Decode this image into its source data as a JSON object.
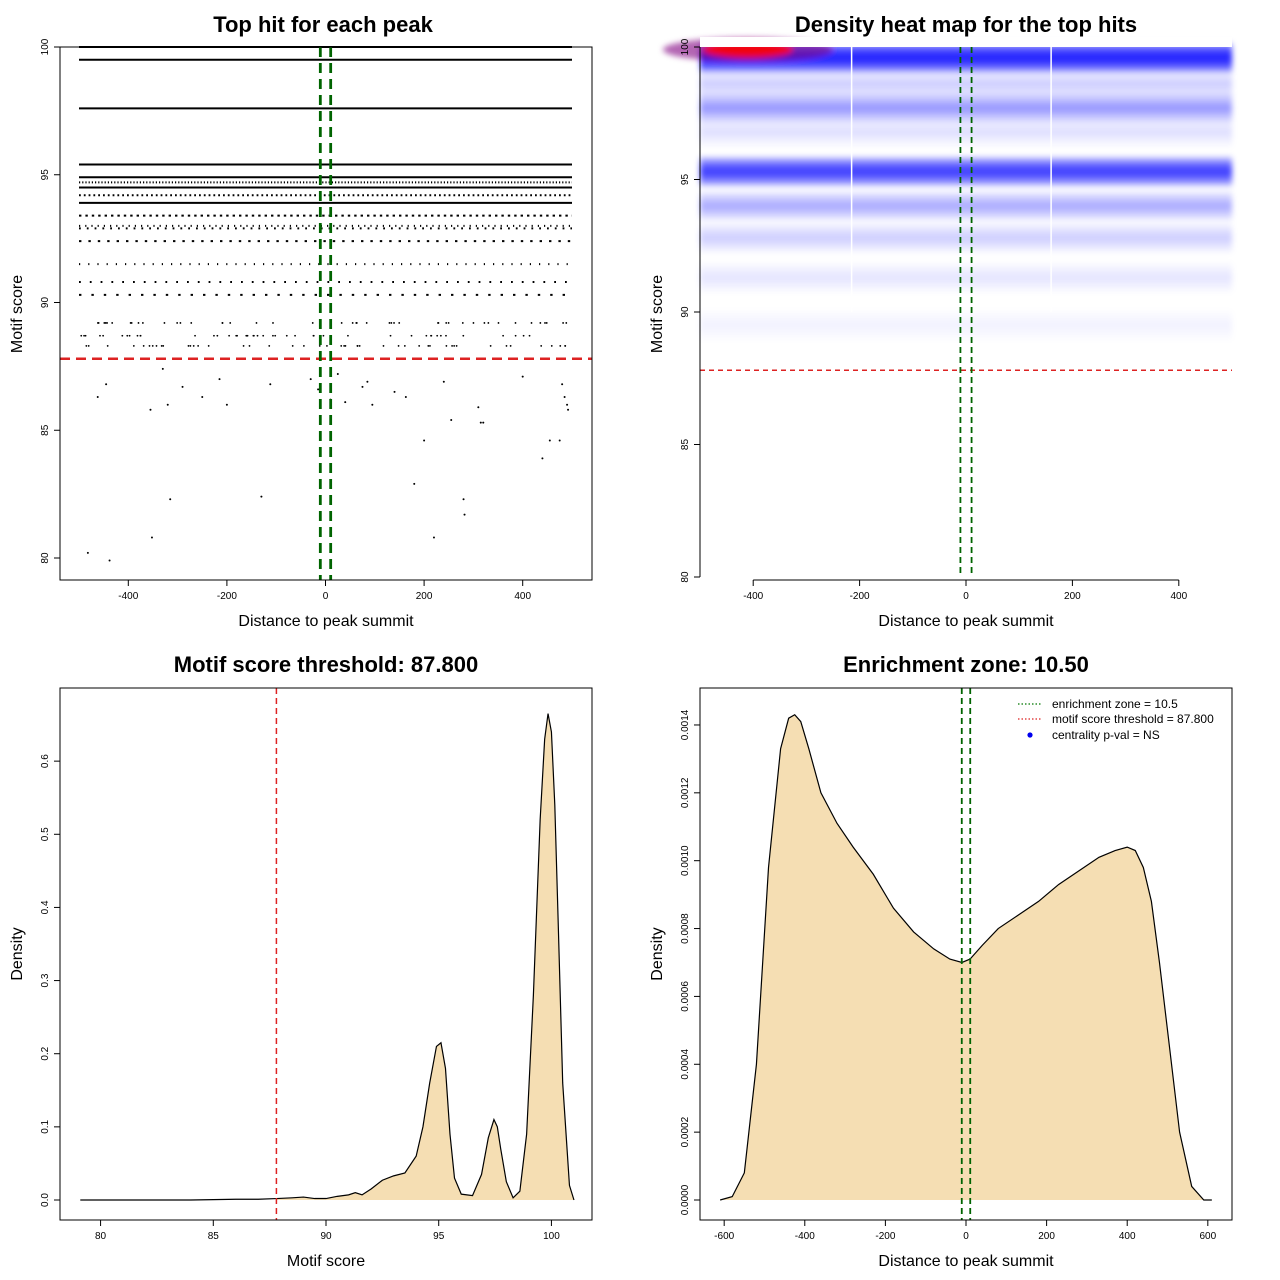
{
  "chart_data": [
    {
      "type": "scatter",
      "title": "Top hit for each peak",
      "xlabel": "Distance to peak summit",
      "ylabel": "Motif score",
      "xlim": [
        -500,
        500
      ],
      "ylim": [
        80,
        100
      ],
      "xticks": [
        -400,
        -200,
        0,
        200,
        400
      ],
      "yticks": [
        80,
        85,
        90,
        95,
        100
      ],
      "threshold": 87.8,
      "enrichment_zone": [
        -10.5,
        10.5
      ],
      "solid_rows": [
        100,
        99.5,
        97.6,
        95.4,
        94.9,
        94.5,
        93.9
      ],
      "dotted_rows": [
        94.7,
        94.2,
        93.4,
        93.0,
        92.9,
        92.4,
        91.5,
        90.8,
        90.3
      ],
      "sparse_rows": [
        89.2,
        88.7,
        88.3
      ],
      "points": [
        [
          -482,
          80.2
        ],
        [
          -438,
          79.9
        ],
        [
          -462,
          86.3
        ],
        [
          -445,
          86.8
        ],
        [
          -355,
          85.8
        ],
        [
          -352,
          80.8
        ],
        [
          -330,
          87.4
        ],
        [
          -320,
          86.0
        ],
        [
          -315,
          82.3
        ],
        [
          -290,
          86.7
        ],
        [
          -250,
          86.3
        ],
        [
          -215,
          87.0
        ],
        [
          -200,
          86.0
        ],
        [
          -130,
          82.4
        ],
        [
          -112,
          86.8
        ],
        [
          -30,
          87.0
        ],
        [
          -15,
          86.6
        ],
        [
          10,
          86.2
        ],
        [
          25,
          87.2
        ],
        [
          40,
          86.1
        ],
        [
          75,
          86.7
        ],
        [
          85,
          86.9
        ],
        [
          95,
          86.0
        ],
        [
          140,
          86.5
        ],
        [
          163,
          86.3
        ],
        [
          180,
          82.9
        ],
        [
          200,
          84.6
        ],
        [
          220,
          80.8
        ],
        [
          240,
          86.9
        ],
        [
          255,
          85.4
        ],
        [
          280,
          82.3
        ],
        [
          282,
          81.7
        ],
        [
          310,
          85.9
        ],
        [
          315,
          85.3
        ],
        [
          320,
          85.3
        ],
        [
          400,
          87.1
        ],
        [
          440,
          83.9
        ],
        [
          455,
          84.6
        ],
        [
          480,
          86.8
        ],
        [
          485,
          86.3
        ],
        [
          490,
          86.0
        ],
        [
          492,
          85.8
        ],
        [
          475,
          84.6
        ]
      ]
    },
    {
      "type": "heatmap",
      "title": "Density heat map for the top hits",
      "xlabel": "Distance to peak summit",
      "ylabel": "Motif score",
      "xlim": [
        -500,
        500
      ],
      "ylim": [
        80,
        100
      ],
      "xticks": [
        -400,
        -200,
        0,
        200,
        400
      ],
      "yticks": [
        80,
        85,
        90,
        95,
        100
      ],
      "threshold": 87.8,
      "enrichment_zone": [
        -10.5,
        10.5
      ],
      "bands": [
        {
          "score": 99.6,
          "intensity": 1.0
        },
        {
          "score": 98.6,
          "intensity": 0.12
        },
        {
          "score": 97.7,
          "intensity": 0.3
        },
        {
          "score": 96.8,
          "intensity": 0.08
        },
        {
          "score": 95.3,
          "intensity": 0.72
        },
        {
          "score": 94.0,
          "intensity": 0.22
        },
        {
          "score": 92.8,
          "intensity": 0.12
        },
        {
          "score": 91.3,
          "intensity": 0.07
        },
        {
          "score": 89.5,
          "intensity": 0.04
        }
      ],
      "hotspot": {
        "x": -410,
        "score": 99.9,
        "color": "#ff0000"
      }
    },
    {
      "type": "area",
      "title": "Motif score threshold: 87.800",
      "xlabel": "Motif score",
      "ylabel": "Density",
      "xlim": [
        79,
        101
      ],
      "ylim": [
        0,
        0.7
      ],
      "xticks": [
        80,
        85,
        90,
        95,
        100
      ],
      "yticks": [
        0.0,
        0.1,
        0.2,
        0.3,
        0.4,
        0.5,
        0.6
      ],
      "ytick_labels": [
        "0.0",
        "0.1",
        "0.2",
        "0.3",
        "0.4",
        "0.5",
        "0.6"
      ],
      "threshold": 87.8,
      "fill_from": 87.8,
      "x": [
        79.1,
        80,
        82,
        84,
        86,
        87,
        87.8,
        88.5,
        89,
        89.5,
        90,
        90.5,
        91,
        91.3,
        91.6,
        92,
        92.5,
        93,
        93.5,
        94,
        94.3,
        94.6,
        94.9,
        95.1,
        95.3,
        95.5,
        95.7,
        96,
        96.5,
        96.9,
        97.2,
        97.45,
        97.6,
        97.75,
        98,
        98.3,
        98.6,
        98.9,
        99.2,
        99.5,
        99.7,
        99.85,
        100,
        100.15,
        100.3,
        100.5,
        100.8,
        101
      ],
      "y": [
        0.0,
        0.0,
        0.0,
        0.0,
        0.001,
        0.001,
        0.002,
        0.003,
        0.004,
        0.002,
        0.002,
        0.005,
        0.007,
        0.01,
        0.007,
        0.015,
        0.027,
        0.033,
        0.037,
        0.06,
        0.1,
        0.16,
        0.21,
        0.215,
        0.18,
        0.09,
        0.03,
        0.008,
        0.006,
        0.035,
        0.085,
        0.11,
        0.1,
        0.07,
        0.025,
        0.003,
        0.012,
        0.09,
        0.28,
        0.52,
        0.63,
        0.665,
        0.64,
        0.54,
        0.38,
        0.16,
        0.02,
        0.0
      ]
    },
    {
      "type": "area",
      "title": "Enrichment zone: 10.50",
      "xlabel": "Distance to peak summit",
      "ylabel": "Density",
      "xlim": [
        -610,
        610
      ],
      "ylim": [
        0,
        0.00145
      ],
      "xticks": [
        -600,
        -400,
        -200,
        0,
        200,
        400,
        600
      ],
      "yticks": [
        0.0,
        0.0002,
        0.0004,
        0.0006,
        0.0008,
        0.001,
        0.0012,
        0.0014
      ],
      "ytick_labels": [
        "0.0000",
        "0.0002",
        "0.0004",
        "0.0006",
        "0.0008",
        "0.0010",
        "0.0012",
        "0.0014"
      ],
      "threshold": 87.8,
      "enrichment_zone": [
        -10.5,
        10.5
      ],
      "x": [
        -610,
        -580,
        -550,
        -520,
        -490,
        -460,
        -440,
        -425,
        -410,
        -390,
        -360,
        -320,
        -280,
        -230,
        -180,
        -130,
        -80,
        -40,
        -10,
        10,
        40,
        80,
        130,
        180,
        230,
        280,
        330,
        370,
        400,
        420,
        440,
        460,
        480,
        500,
        530,
        560,
        590,
        610
      ],
      "y": [
        0.0,
        1e-05,
        8e-05,
        0.0004,
        0.00098,
        0.00133,
        0.00142,
        0.00143,
        0.00141,
        0.00133,
        0.0012,
        0.00111,
        0.00104,
        0.00096,
        0.00086,
        0.00079,
        0.00074,
        0.00071,
        0.0007,
        0.00071,
        0.00075,
        0.0008,
        0.00084,
        0.00088,
        0.00093,
        0.00097,
        0.00101,
        0.00103,
        0.00104,
        0.00103,
        0.00098,
        0.00088,
        0.0007,
        0.0005,
        0.0002,
        4e-05,
        0.0,
        0.0
      ],
      "legend": [
        {
          "label": "enrichment zone = 10.5",
          "color": "#007700",
          "symbol": "dotted-line"
        },
        {
          "label": "motif score threshold = 87.800",
          "color": "#dd2222",
          "symbol": "dotted-line"
        },
        {
          "label": "centrality p-val = NS",
          "color": "#0000ee",
          "symbol": "point"
        }
      ],
      "legend_position": "top-right"
    }
  ],
  "colors": {
    "threshold": "#dd2222",
    "zone": "#006400",
    "fill": "#f5deb3",
    "heat_low": "#ffffff",
    "heat_mid": "#0000ff",
    "heat_high": "#ff0000"
  }
}
